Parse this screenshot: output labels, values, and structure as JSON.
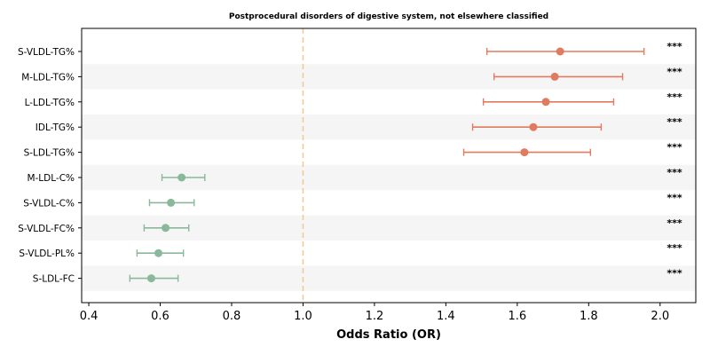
{
  "chart_data": {
    "type": "forest",
    "title": "Postprocedural disorders of digestive system, not elsewhere classified",
    "xlabel": "Odds Ratio (OR)",
    "xlim": [
      0.38,
      2.1
    ],
    "xticks": [
      "0.4",
      "0.6",
      "0.8",
      "1.0",
      "1.2",
      "1.4",
      "1.6",
      "1.8",
      "2.0"
    ],
    "xtick_values": [
      0.4,
      0.6,
      0.8,
      1.0,
      1.2,
      1.4,
      1.6,
      1.8,
      2.0
    ],
    "reference_line": 1.0,
    "reference_color": "#f0c890",
    "risk_color": "#e07b5f",
    "protective_color": "#8ab89b",
    "band_color": "#f5f5f5",
    "rows": [
      {
        "label": "S-VLDL-TG%",
        "or": 1.72,
        "lo": 1.515,
        "hi": 1.955,
        "sig": "***"
      },
      {
        "label": "M-LDL-TG%",
        "or": 1.705,
        "lo": 1.535,
        "hi": 1.895,
        "sig": "***"
      },
      {
        "label": "L-LDL-TG%",
        "or": 1.68,
        "lo": 1.505,
        "hi": 1.87,
        "sig": "***"
      },
      {
        "label": "IDL-TG%",
        "or": 1.645,
        "lo": 1.475,
        "hi": 1.835,
        "sig": "***"
      },
      {
        "label": "S-LDL-TG%",
        "or": 1.62,
        "lo": 1.45,
        "hi": 1.805,
        "sig": "***"
      },
      {
        "label": "M-LDL-C%",
        "or": 0.66,
        "lo": 0.605,
        "hi": 0.725,
        "sig": "***"
      },
      {
        "label": "S-VLDL-C%",
        "or": 0.63,
        "lo": 0.57,
        "hi": 0.695,
        "sig": "***"
      },
      {
        "label": "S-VLDL-FC%",
        "or": 0.615,
        "lo": 0.555,
        "hi": 0.68,
        "sig": "***"
      },
      {
        "label": "S-VLDL-PL%",
        "or": 0.595,
        "lo": 0.535,
        "hi": 0.665,
        "sig": "***"
      },
      {
        "label": "S-LDL-FC",
        "or": 0.575,
        "lo": 0.515,
        "hi": 0.65,
        "sig": "***"
      }
    ]
  }
}
